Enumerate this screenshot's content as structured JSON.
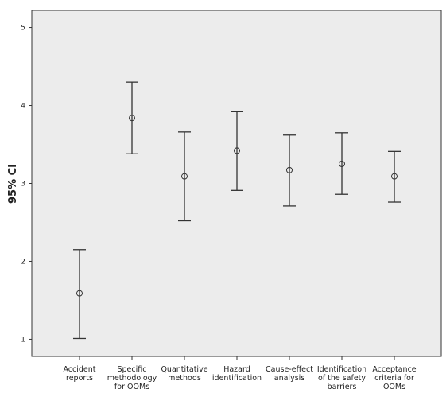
{
  "chart_data": {
    "type": "errorbar",
    "y_label": "95% CI",
    "categories": [
      "Accident\nreports",
      "Specific\nmethodology\nfor OOMs",
      "Quantitative\nmethods",
      "Hazard\nidentification",
      "Cause-effect\nanalysis",
      "Identification\nof the safety\nbarriers",
      "Acceptance\ncriteria for\nOOMs"
    ],
    "values": [
      1.59,
      3.84,
      3.09,
      3.42,
      3.17,
      3.25,
      3.09
    ],
    "ci_low": [
      1.01,
      3.38,
      2.52,
      2.91,
      2.71,
      2.86,
      2.76
    ],
    "ci_high": [
      2.15,
      4.3,
      3.66,
      3.92,
      3.62,
      3.65,
      3.41
    ],
    "color": "#333333",
    "ylim": [
      0.78,
      5.22
    ],
    "yticks": [
      1,
      2,
      3,
      4,
      5
    ]
  }
}
